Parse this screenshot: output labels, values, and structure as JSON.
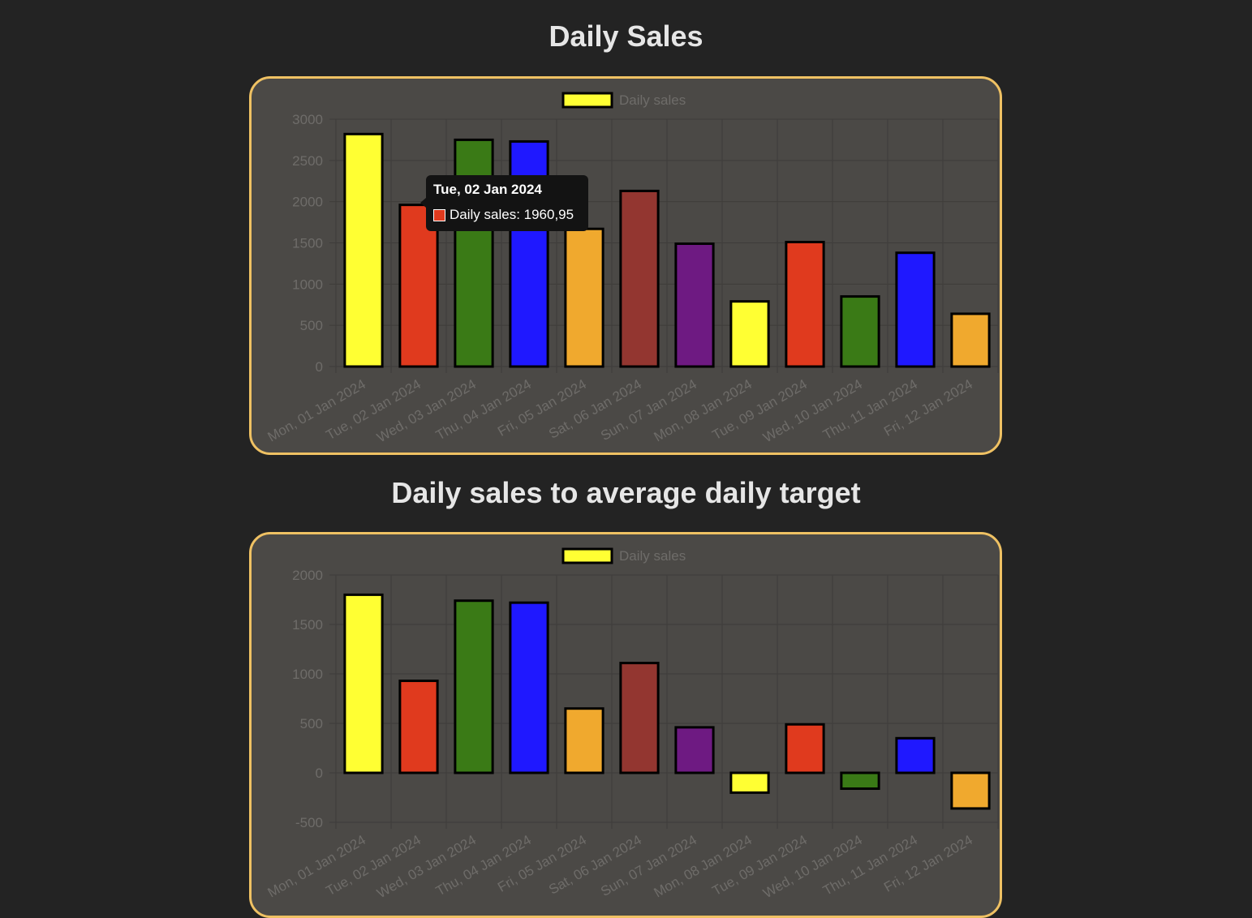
{
  "page": {
    "title_1": "Daily Sales",
    "title_2": "Daily sales to average daily target"
  },
  "tooltip": {
    "title": "Tue, 02 Jan 2024",
    "label": "Daily sales: 1960,95",
    "color": "#e03a1e"
  },
  "colors": {
    "background": "#232323",
    "card": "#4b4946",
    "card_border": "#efc163",
    "grid": "#3e3c3a",
    "tick_text": "#6e6c69",
    "bar_border": "#000000"
  },
  "chart_data": [
    {
      "type": "bar",
      "legend": "Daily sales",
      "legend_color": "#ffff33",
      "legend_position": "top",
      "grid": true,
      "ylim": [
        0,
        3000
      ],
      "yticks": [
        0,
        500,
        1000,
        1500,
        2000,
        2500,
        3000
      ],
      "categories": [
        "Mon, 01 Jan 2024",
        "Tue, 02 Jan 2024",
        "Wed, 03 Jan 2024",
        "Thu, 04 Jan 2024",
        "Fri, 05 Jan 2024",
        "Sat, 06 Jan 2024",
        "Sun, 07 Jan 2024",
        "Mon, 08 Jan 2024",
        "Tue, 09 Jan 2024",
        "Wed, 10 Jan 2024",
        "Thu, 11 Jan 2024",
        "Fri, 12 Jan 2024"
      ],
      "values": [
        2820,
        1960.95,
        2750,
        2730,
        1670,
        2130,
        1490,
        790,
        1510,
        850,
        1380,
        640
      ],
      "bar_colors": [
        "#ffff33",
        "#e03a1e",
        "#3a7a16",
        "#1f18ff",
        "#f0a92e",
        "#933630",
        "#6e1a82",
        "#ffff33",
        "#e03a1e",
        "#3a7a16",
        "#1f18ff",
        "#f0a92e"
      ]
    },
    {
      "type": "bar",
      "legend": "Daily sales",
      "legend_color": "#ffff33",
      "legend_position": "top",
      "grid": true,
      "ylim": [
        -500,
        2000
      ],
      "yticks": [
        -500,
        0,
        500,
        1000,
        1500,
        2000
      ],
      "categories": [
        "Mon, 01 Jan 2024",
        "Tue, 02 Jan 2024",
        "Wed, 03 Jan 2024",
        "Thu, 04 Jan 2024",
        "Fri, 05 Jan 2024",
        "Sat, 06 Jan 2024",
        "Sun, 07 Jan 2024",
        "Mon, 08 Jan 2024",
        "Tue, 09 Jan 2024",
        "Wed, 10 Jan 2024",
        "Thu, 11 Jan 2024",
        "Fri, 12 Jan 2024"
      ],
      "values": [
        1800,
        930,
        1740,
        1720,
        650,
        1110,
        460,
        -200,
        490,
        -160,
        350,
        -360
      ],
      "bar_colors": [
        "#ffff33",
        "#e03a1e",
        "#3a7a16",
        "#1f18ff",
        "#f0a92e",
        "#933630",
        "#6e1a82",
        "#ffff33",
        "#e03a1e",
        "#3a7a16",
        "#1f18ff",
        "#f0a92e"
      ]
    }
  ]
}
